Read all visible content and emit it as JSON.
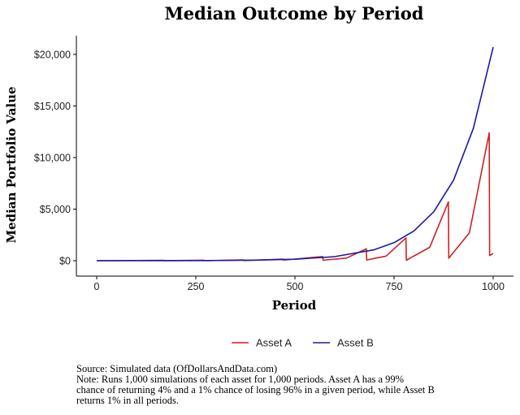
{
  "chart_data": {
    "type": "line",
    "title": "Median Outcome by Period",
    "xlabel": "Period",
    "ylabel": "Median Portfolio Value",
    "xlim": [
      0,
      1000
    ],
    "ylim": [
      0,
      20000
    ],
    "x_ticks": [
      0,
      250,
      500,
      750,
      1000
    ],
    "x_tick_labels": [
      "0",
      "250",
      "500",
      "750",
      "1000"
    ],
    "y_ticks": [
      0,
      5000,
      10000,
      15000,
      20000
    ],
    "y_tick_labels": [
      "$0",
      "$5,000",
      "$10,000",
      "$15,000",
      "$20,000"
    ],
    "grid": false,
    "legend_position": "bottom",
    "series": [
      {
        "name": "Asset A",
        "color": "#cc2222",
        "x": [
          0,
          100,
          170,
          171,
          270,
          271,
          370,
          371,
          470,
          471,
          570,
          571,
          630,
          680,
          681,
          730,
          780,
          781,
          840,
          887,
          888,
          940,
          990,
          991,
          1000
        ],
        "y": [
          0,
          20,
          35,
          2,
          50,
          5,
          70,
          10,
          150,
          60,
          400,
          50,
          250,
          1150,
          70,
          450,
          2200,
          50,
          1300,
          5700,
          250,
          2700,
          12400,
          500,
          700
        ]
      },
      {
        "name": "Asset B",
        "color": "#1a1aa6",
        "x": [
          0,
          100,
          200,
          300,
          400,
          500,
          600,
          700,
          750,
          800,
          850,
          900,
          950,
          1000
        ],
        "y": [
          0,
          3,
          7,
          20,
          53,
          145,
          392,
          1060,
          1750,
          2880,
          4740,
          7800,
          12830,
          20700
        ]
      }
    ]
  },
  "caption": {
    "source": "Source:  Simulated data (OfDollarsAndData.com)",
    "note_lines": [
      "Note: Runs 1,000 simulations of each asset for 1,000 periods. Asset A has a 99%",
      "chance of returning 4% and a 1% chance of losing 96% in a given period, while Asset B",
      "returns 1% in all periods."
    ]
  }
}
